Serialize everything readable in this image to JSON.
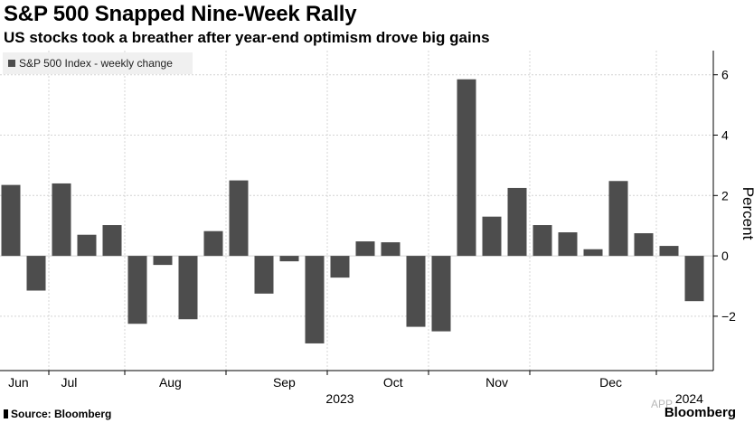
{
  "header": {
    "title": "S&P 500 Snapped Nine-Week Rally",
    "subtitle": "US stocks took a breather after year-end optimism drove big gains"
  },
  "footer": {
    "source": "Source: Bloomberg",
    "brand": "Bloomberg",
    "watermark": "APP"
  },
  "chart_data": {
    "type": "bar",
    "series_name": "S&P 500 Index - weekly change",
    "ylabel": "Percent",
    "ylim": [
      -3.8,
      6.8
    ],
    "yticks": [
      -2,
      0,
      2,
      4,
      6
    ],
    "values": [
      2.35,
      -1.15,
      2.4,
      0.7,
      1.02,
      -2.25,
      -0.3,
      -2.1,
      0.82,
      2.5,
      -1.25,
      -0.18,
      -2.9,
      -0.72,
      0.48,
      0.45,
      -2.35,
      -2.5,
      5.85,
      1.3,
      2.25,
      1.02,
      0.78,
      0.22,
      2.48,
      0.75,
      0.33,
      -1.5
    ],
    "month_labels": [
      {
        "label": "Jun",
        "bar": 0.3
      },
      {
        "label": "Jul",
        "bar": 2.3
      },
      {
        "label": "Aug",
        "bar": 6.3
      },
      {
        "label": "Sep",
        "bar": 10.8
      },
      {
        "label": "Oct",
        "bar": 15.1
      },
      {
        "label": "Nov",
        "bar": 19.2
      },
      {
        "label": "Dec",
        "bar": 23.7
      },
      {
        "label": "2024",
        "bar": 26.8
      }
    ],
    "month_boundaries": [
      1.5,
      4.5,
      8.5,
      12.5,
      16.5,
      20.5,
      25.5
    ],
    "year_label": {
      "label": "2023",
      "bar": 13
    },
    "colors": {
      "bar": "#4d4d4d",
      "grid": "#d4d4d4",
      "axis": "#000000"
    }
  }
}
